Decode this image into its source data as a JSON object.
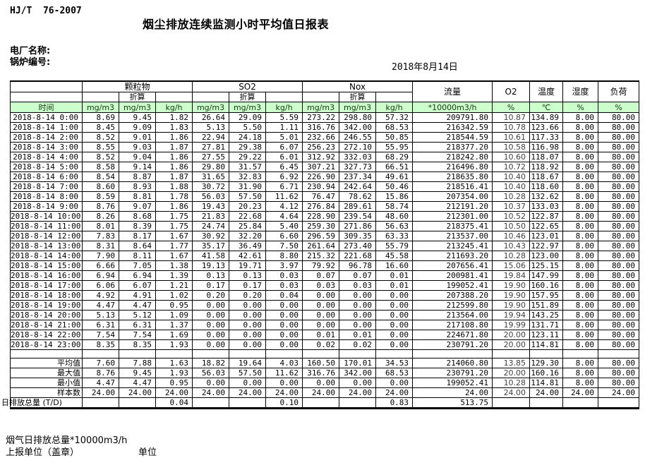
{
  "page": {
    "standard": "HJ/T  76-2007",
    "title": "烟尘排放连续监测小时平均值日报表",
    "plant_label": "电厂名称:",
    "boiler_label": "锅炉编号:",
    "date": "2018年8月14日"
  },
  "colors": {
    "header_green": "#ccffcc",
    "grid_line": "#000000"
  },
  "table": {
    "group_headers": {
      "pm": "颗粒物",
      "so2": "SO2",
      "nox": "Nox",
      "flow": "流量",
      "o2": "O2",
      "temp": "温度",
      "humidity": "湿度",
      "load": "负荷"
    },
    "converted_label": "折算",
    "time_header": "时间",
    "unit_row": [
      "mg/m3",
      "mg/m3",
      "kg/h",
      "mg/m3",
      "mg/m3",
      "kg/h",
      "mg/m3",
      "mg/m3",
      "kg/h",
      "*10000m3/h",
      "%",
      "℃",
      "%",
      "%"
    ],
    "rows": [
      {
        "time": "2018-8-14 0:00",
        "values": [
          "8.69",
          "9.45",
          "1.82",
          "26.64",
          "29.09",
          "5.59",
          "273.22",
          "298.80",
          "57.32",
          "209791.80",
          "10.87",
          "134.89",
          "8.00",
          "80.00"
        ]
      },
      {
        "time": "2018-8-14 1:00",
        "values": [
          "8.45",
          "9.09",
          "1.83",
          "5.13",
          "5.50",
          "1.11",
          "316.76",
          "342.00",
          "68.53",
          "216342.59",
          "10.78",
          "123.66",
          "8.00",
          "80.00"
        ]
      },
      {
        "time": "2018-8-14 2:00",
        "values": [
          "8.52",
          "9.01",
          "1.86",
          "22.94",
          "24.18",
          "5.01",
          "232.66",
          "246.55",
          "50.85",
          "218544.59",
          "10.61",
          "117.33",
          "8.00",
          "80.00"
        ]
      },
      {
        "time": "2018-8-14 3:00",
        "values": [
          "8.55",
          "9.03",
          "1.87",
          "27.81",
          "29.38",
          "6.07",
          "256.23",
          "272.10",
          "55.95",
          "218377.20",
          "10.58",
          "116.98",
          "8.00",
          "80.00"
        ]
      },
      {
        "time": "2018-8-14 4:00",
        "values": [
          "8.52",
          "9.04",
          "1.86",
          "27.55",
          "29.22",
          "6.01",
          "312.92",
          "332.03",
          "68.29",
          "218242.80",
          "10.60",
          "118.07",
          "8.00",
          "80.00"
        ]
      },
      {
        "time": "2018-8-14 5:00",
        "values": [
          "8.58",
          "9.14",
          "1.86",
          "29.80",
          "31.57",
          "6.45",
          "307.21",
          "327.73",
          "66.51",
          "216496.80",
          "10.72",
          "118.92",
          "8.00",
          "80.00"
        ]
      },
      {
        "time": "2018-8-14 6:00",
        "values": [
          "8.54",
          "8.87",
          "1.87",
          "31.65",
          "32.83",
          "6.92",
          "226.90",
          "237.34",
          "49.61",
          "218635.80",
          "10.40",
          "118.67",
          "8.00",
          "80.00"
        ]
      },
      {
        "time": "2018-8-14 7:00",
        "values": [
          "8.60",
          "8.93",
          "1.88",
          "30.72",
          "31.90",
          "6.71",
          "230.94",
          "242.64",
          "50.46",
          "218516.41",
          "10.40",
          "118.60",
          "8.00",
          "80.00"
        ]
      },
      {
        "time": "2018-8-14 8:00",
        "values": [
          "8.59",
          "8.81",
          "1.78",
          "56.03",
          "57.50",
          "11.62",
          "76.47",
          "78.62",
          "15.86",
          "207354.00",
          "10.28",
          "132.62",
          "8.00",
          "80.00"
        ]
      },
      {
        "time": "2018-8-14 9:00",
        "values": [
          "8.76",
          "9.07",
          "1.86",
          "19.43",
          "20.23",
          "4.12",
          "276.84",
          "289.61",
          "58.74",
          "212191.20",
          "10.37",
          "133.03",
          "8.00",
          "80.00"
        ]
      },
      {
        "time": "2018-8-14 10:00",
        "values": [
          "8.26",
          "8.68",
          "1.75",
          "21.83",
          "22.68",
          "4.64",
          "228.90",
          "239.54",
          "48.60",
          "212301.00",
          "10.52",
          "122.87",
          "8.00",
          "80.00"
        ]
      },
      {
        "time": "2018-8-14 11:00",
        "values": [
          "8.01",
          "8.39",
          "1.75",
          "24.74",
          "25.84",
          "5.40",
          "259.30",
          "271.86",
          "56.63",
          "218375.41",
          "10.50",
          "122.65",
          "8.00",
          "80.00"
        ]
      },
      {
        "time": "2018-8-14 12:00",
        "values": [
          "7.83",
          "8.17",
          "1.67",
          "30.92",
          "32.20",
          "6.60",
          "296.59",
          "309.35",
          "63.33",
          "213537.00",
          "10.46",
          "123.01",
          "8.00",
          "80.00"
        ]
      },
      {
        "time": "2018-8-14 13:00",
        "values": [
          "8.31",
          "8.64",
          "1.77",
          "35.17",
          "36.49",
          "7.50",
          "261.64",
          "273.40",
          "55.79",
          "213245.41",
          "10.43",
          "122.97",
          "8.00",
          "80.00"
        ]
      },
      {
        "time": "2018-8-14 14:00",
        "values": [
          "7.90",
          "8.11",
          "1.67",
          "41.58",
          "42.61",
          "8.80",
          "215.32",
          "221.68",
          "45.58",
          "211693.20",
          "10.28",
          "123.00",
          "8.00",
          "80.00"
        ]
      },
      {
        "time": "2018-8-14 15:00",
        "values": [
          "6.66",
          "7.05",
          "1.38",
          "19.13",
          "19.71",
          "3.97",
          "79.92",
          "96.78",
          "16.60",
          "207656.41",
          "15.06",
          "125.15",
          "8.00",
          "80.00"
        ]
      },
      {
        "time": "2018-8-14 16:00",
        "values": [
          "6.94",
          "6.94",
          "1.39",
          "0.13",
          "0.13",
          "0.03",
          "0.07",
          "0.07",
          "0.01",
          "200981.41",
          "19.84",
          "147.99",
          "8.00",
          "80.00"
        ]
      },
      {
        "time": "2018-8-14 17:00",
        "values": [
          "6.06",
          "6.07",
          "1.21",
          "0.17",
          "0.17",
          "0.03",
          "0.03",
          "0.03",
          "0.01",
          "199052.41",
          "19.90",
          "160.16",
          "8.00",
          "80.00"
        ]
      },
      {
        "time": "2018-8-14 18:00",
        "values": [
          "4.92",
          "4.91",
          "1.02",
          "0.20",
          "0.20",
          "0.04",
          "0.00",
          "0.00",
          "0.00",
          "207388.20",
          "19.90",
          "157.95",
          "8.00",
          "80.00"
        ]
      },
      {
        "time": "2018-8-14 19:00",
        "values": [
          "4.47",
          "4.47",
          "0.95",
          "0.00",
          "0.00",
          "0.00",
          "0.00",
          "0.00",
          "0.00",
          "212599.80",
          "19.90",
          "151.89",
          "8.00",
          "80.00"
        ]
      },
      {
        "time": "2018-8-14 20:00",
        "values": [
          "5.13",
          "5.12",
          "1.09",
          "0.00",
          "0.00",
          "0.00",
          "0.00",
          "0.00",
          "0.00",
          "213564.00",
          "19.94",
          "143.25",
          "8.00",
          "80.00"
        ]
      },
      {
        "time": "2018-8-14 21:00",
        "values": [
          "6.31",
          "6.31",
          "1.37",
          "0.00",
          "0.00",
          "0.00",
          "0.00",
          "0.00",
          "0.00",
          "217108.80",
          "19.99",
          "131.71",
          "8.00",
          "80.00"
        ]
      },
      {
        "time": "2018-8-14 22:00",
        "values": [
          "7.54",
          "7.54",
          "1.69",
          "0.00",
          "0.00",
          "0.00",
          "0.01",
          "0.01",
          "0.00",
          "224671.80",
          "20.00",
          "123.11",
          "8.00",
          "80.00"
        ]
      },
      {
        "time": "2018-8-14 23:00",
        "values": [
          "8.35",
          "8.35",
          "1.93",
          "0.00",
          "0.00",
          "0.00",
          "0.02",
          "0.02",
          "0.00",
          "230791.20",
          "20.00",
          "114.81",
          "8.00",
          "80.00"
        ]
      }
    ],
    "summary_rows": [
      {
        "label": "平均值",
        "values": [
          "7.60",
          "7.88",
          "1.63",
          "18.82",
          "19.64",
          "4.03",
          "160.50",
          "170.01",
          "34.53",
          "214060.80",
          "13.85",
          "129.30",
          "8.00",
          "80.00"
        ]
      },
      {
        "label": "最大值",
        "values": [
          "8.76",
          "9.45",
          "1.93",
          "56.03",
          "57.50",
          "11.62",
          "316.76",
          "342.00",
          "68.53",
          "230791.20",
          "20.00",
          "160.16",
          "8.00",
          "80.00"
        ]
      },
      {
        "label": "最小值",
        "values": [
          "4.47",
          "4.47",
          "0.95",
          "0.00",
          "0.00",
          "0.00",
          "0.00",
          "0.00",
          "0.00",
          "199052.41",
          "10.28",
          "114.81",
          "8.00",
          "80.00"
        ]
      },
      {
        "label": "样本数",
        "values": [
          "24.00",
          "24.00",
          "24.00",
          "24.00",
          "24.00",
          "24.00",
          "24.00",
          "24.00",
          "24.00",
          "24.00",
          "24.00",
          "24.00",
          "24.00",
          "24.00"
        ]
      }
    ],
    "total_row": {
      "label": "日排放总量 (T/D)",
      "values": [
        "",
        "",
        "0.04",
        "",
        "",
        "0.10",
        "",
        "",
        "0.83",
        "513.75",
        "",
        "",
        "",
        ""
      ]
    }
  },
  "footer": {
    "flue_total_label": "烟气日排放总量*10000m3/h",
    "report_unit_label": "上报单位（盖章）",
    "unit_label": "单位"
  }
}
